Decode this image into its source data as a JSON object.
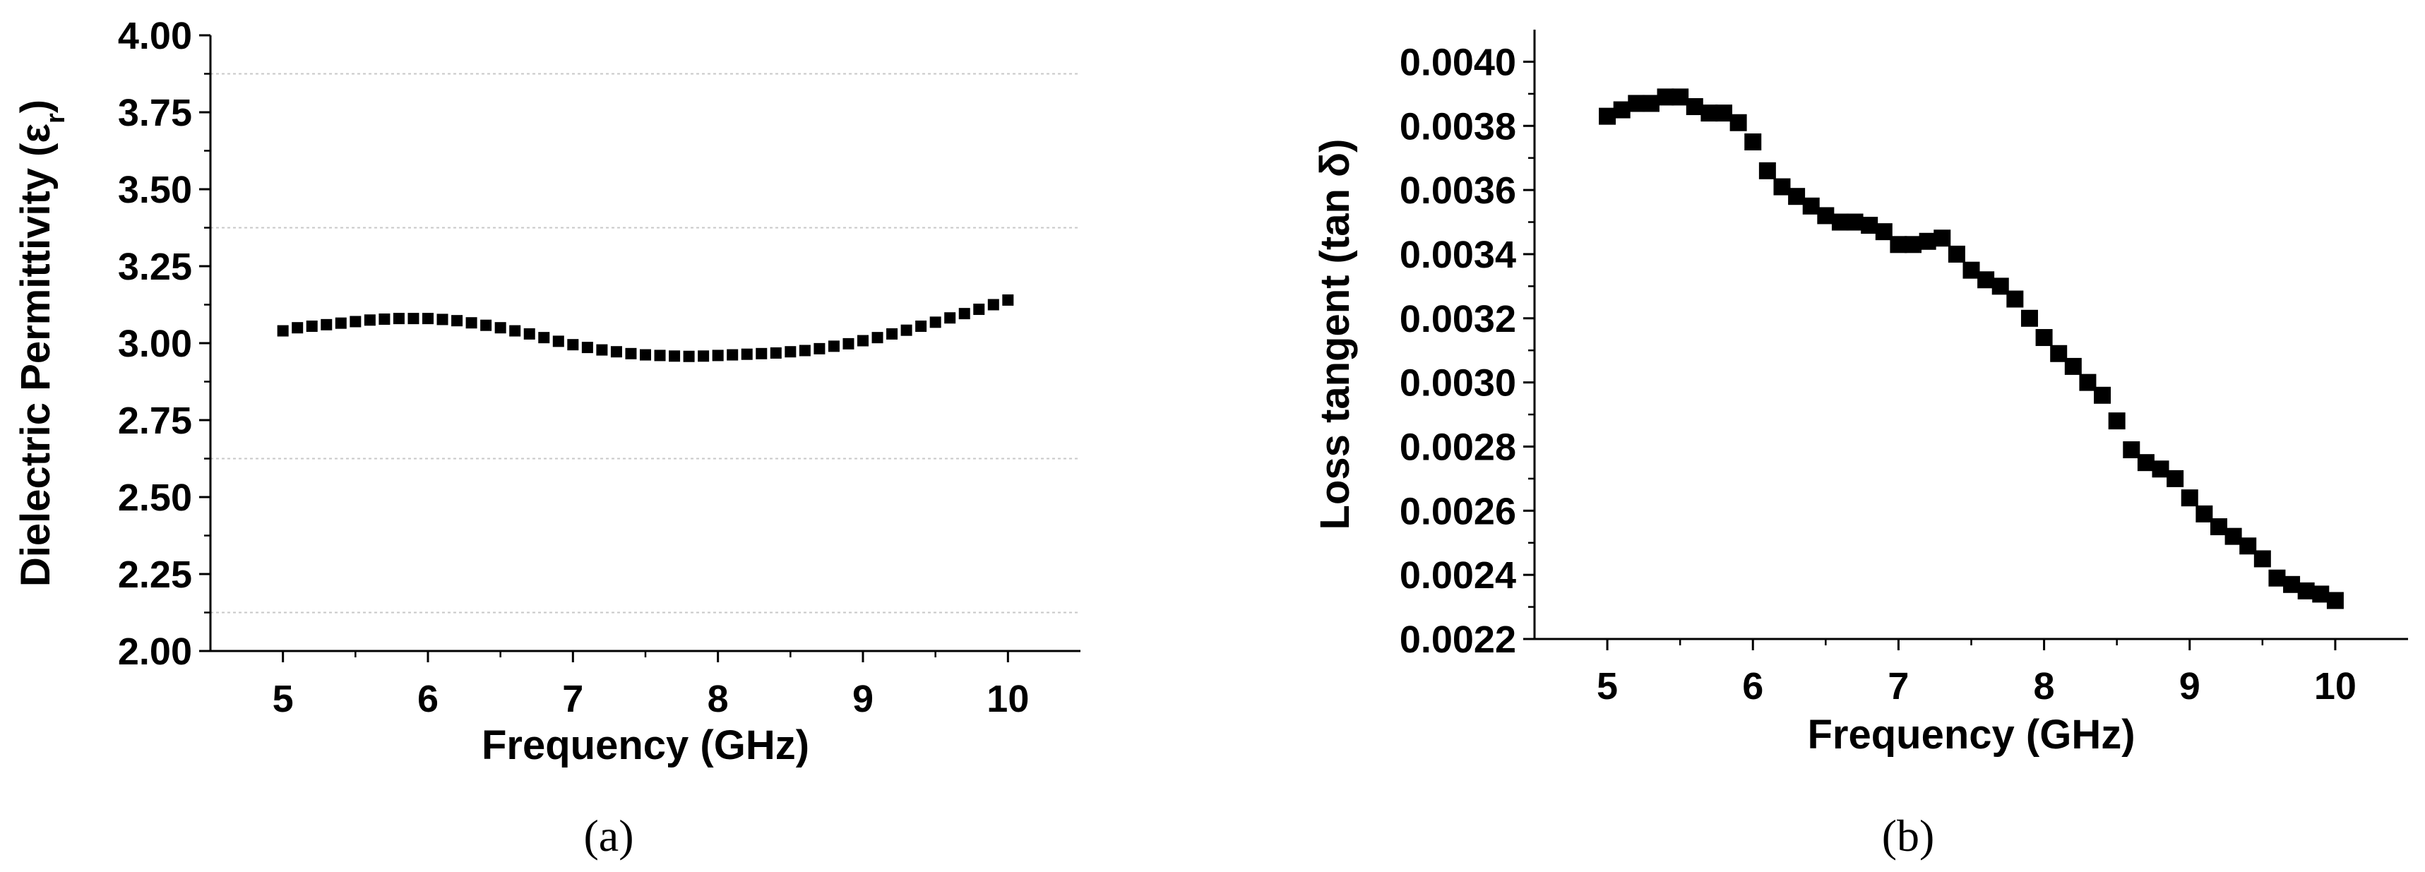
{
  "chart_data": [
    {
      "type": "scatter",
      "caption": "(a)",
      "xlabel": "Frequency (GHz)",
      "ylabel": "Dielectric Permittivity (ε",
      "ylabel_sub": "r",
      "ylabel_close": ")",
      "xlim": [
        4.5,
        10.5
      ],
      "ylim": [
        2.0,
        4.0
      ],
      "x_ticks": [
        "5",
        "6",
        "7",
        "8",
        "9",
        "10"
      ],
      "y_ticks": [
        "2.00",
        "2.25",
        "2.50",
        "2.75",
        "3.00",
        "3.25",
        "3.50",
        "3.75",
        "4.00"
      ],
      "grid": "dotted horizontal lines at 2.125, 2.625, 3.375, 3.875",
      "marker_color": "#000000",
      "series": [
        {
          "x": [
            5.0,
            5.1,
            5.2,
            5.3,
            5.4,
            5.5,
            5.6,
            5.7,
            5.8,
            5.9,
            6.0,
            6.1,
            6.2,
            6.3,
            6.4,
            6.5,
            6.6,
            6.7,
            6.8,
            6.9,
            7.0,
            7.1,
            7.2,
            7.3,
            7.4,
            7.5,
            7.6,
            7.7,
            7.8,
            7.9,
            8.0,
            8.1,
            8.2,
            8.3,
            8.4,
            8.5,
            8.6,
            8.7,
            8.8,
            8.9,
            9.0,
            9.1,
            9.2,
            9.3,
            9.4,
            9.5,
            9.6,
            9.7,
            9.8,
            9.9,
            10.0
          ],
          "y": [
            3.04,
            3.05,
            3.055,
            3.06,
            3.065,
            3.07,
            3.075,
            3.078,
            3.08,
            3.08,
            3.08,
            3.077,
            3.073,
            3.066,
            3.058,
            3.05,
            3.04,
            3.03,
            3.018,
            3.006,
            2.995,
            2.986,
            2.978,
            2.972,
            2.966,
            2.962,
            2.96,
            2.958,
            2.957,
            2.958,
            2.96,
            2.962,
            2.964,
            2.966,
            2.968,
            2.972,
            2.976,
            2.982,
            2.99,
            2.998,
            3.008,
            3.018,
            3.03,
            3.042,
            3.055,
            3.068,
            3.082,
            3.096,
            3.11,
            3.125,
            3.14
          ]
        }
      ]
    },
    {
      "type": "scatter",
      "caption": "(b)",
      "xlabel": "Frequency (GHz)",
      "ylabel": "Loss tangent (tan δ)",
      "xlim": [
        4.5,
        10.5
      ],
      "ylim": [
        0.0022,
        0.0041
      ],
      "x_ticks": [
        "5",
        "6",
        "7",
        "8",
        "9",
        "10"
      ],
      "y_ticks": [
        "0.0022",
        "0.0024",
        "0.0026",
        "0.0028",
        "0.0030",
        "0.0032",
        "0.0034",
        "0.0036",
        "0.0038",
        "0.0040"
      ],
      "grid": "off",
      "marker_color": "#000000",
      "series": [
        {
          "x": [
            5.0,
            5.1,
            5.2,
            5.3,
            5.4,
            5.5,
            5.6,
            5.7,
            5.8,
            5.9,
            6.0,
            6.1,
            6.2,
            6.3,
            6.4,
            6.5,
            6.6,
            6.7,
            6.8,
            6.9,
            7.0,
            7.1,
            7.2,
            7.3,
            7.4,
            7.5,
            7.6,
            7.7,
            7.8,
            7.9,
            8.0,
            8.1,
            8.2,
            8.3,
            8.4,
            8.5,
            8.6,
            8.7,
            8.8,
            8.9,
            9.0,
            9.1,
            9.2,
            9.3,
            9.4,
            9.5,
            9.6,
            9.7,
            9.8,
            9.9,
            10.0
          ],
          "y": [
            0.00383,
            0.00385,
            0.00387,
            0.00387,
            0.00389,
            0.00389,
            0.00386,
            0.00384,
            0.00384,
            0.00381,
            0.00375,
            0.00366,
            0.00361,
            0.00358,
            0.00355,
            0.00352,
            0.0035,
            0.0035,
            0.00349,
            0.00347,
            0.00343,
            0.00343,
            0.00344,
            0.00345,
            0.0034,
            0.00335,
            0.00332,
            0.0033,
            0.00326,
            0.0032,
            0.00314,
            0.00309,
            0.00305,
            0.003,
            0.00296,
            0.00288,
            0.00279,
            0.00275,
            0.00273,
            0.0027,
            0.00264,
            0.00259,
            0.00255,
            0.00252,
            0.00249,
            0.00245,
            0.00239,
            0.00237,
            0.00235,
            0.00234,
            0.00232
          ]
        }
      ]
    }
  ]
}
